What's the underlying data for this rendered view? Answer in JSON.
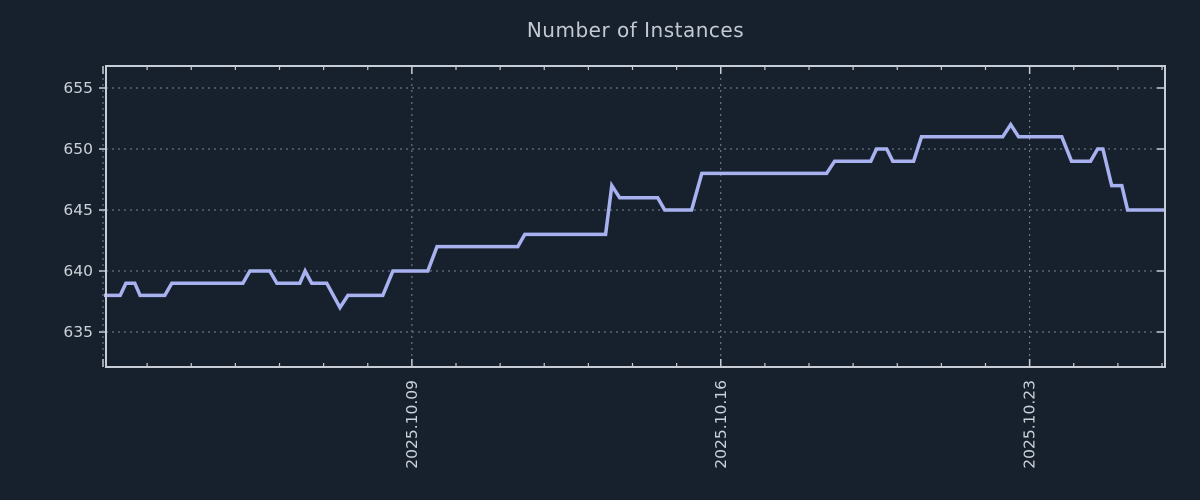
{
  "chart_data": {
    "type": "line",
    "title": "Number of Instances",
    "xlabel": "",
    "ylabel": "",
    "legend": "none",
    "grid": "dotted",
    "background_color": "#17212d",
    "line_color": "#a9b2f0",
    "axis_color": "#c7cdd6",
    "grid_color": "#7e8794",
    "text_color": "#ccd2da",
    "title_color": "#c3c9d2",
    "ylim": [
      632,
      657
    ],
    "y_ticks": [
      635,
      640,
      645,
      650,
      655
    ],
    "x_axis_unit": "days (day 0 = 2025.10.02)",
    "x_range_days": [
      0,
      24.07
    ],
    "x_major_ticks": [
      {
        "day": 0,
        "label": ""
      },
      {
        "day": 7,
        "label": "2025.10.09"
      },
      {
        "day": 14,
        "label": "2025.10.16"
      },
      {
        "day": 21,
        "label": "2025.10.23"
      }
    ],
    "x_minor_tick_every_days": 1,
    "series": [
      {
        "name": "instances",
        "points": [
          [
            0.0,
            638
          ],
          [
            0.39,
            638
          ],
          [
            0.52,
            639
          ],
          [
            0.72,
            639
          ],
          [
            0.84,
            638
          ],
          [
            1.4,
            638
          ],
          [
            1.56,
            639
          ],
          [
            3.17,
            639
          ],
          [
            3.33,
            640
          ],
          [
            3.78,
            640
          ],
          [
            3.94,
            639
          ],
          [
            4.46,
            639
          ],
          [
            4.58,
            640
          ],
          [
            4.73,
            639
          ],
          [
            5.07,
            639
          ],
          [
            5.37,
            637
          ],
          [
            5.55,
            638
          ],
          [
            6.34,
            638
          ],
          [
            6.57,
            640
          ],
          [
            7.36,
            640
          ],
          [
            7.57,
            642
          ],
          [
            9.4,
            642
          ],
          [
            9.56,
            643
          ],
          [
            11.39,
            643
          ],
          [
            11.53,
            647
          ],
          [
            11.71,
            646
          ],
          [
            12.57,
            646
          ],
          [
            12.73,
            645
          ],
          [
            13.34,
            645
          ],
          [
            13.57,
            648
          ],
          [
            16.4,
            648
          ],
          [
            16.58,
            649
          ],
          [
            17.4,
            649
          ],
          [
            17.53,
            650
          ],
          [
            17.76,
            650
          ],
          [
            17.9,
            649
          ],
          [
            18.37,
            649
          ],
          [
            18.55,
            651
          ],
          [
            20.39,
            651
          ],
          [
            20.57,
            652
          ],
          [
            20.75,
            651
          ],
          [
            21.73,
            651
          ],
          [
            21.95,
            649
          ],
          [
            22.38,
            649
          ],
          [
            22.54,
            650
          ],
          [
            22.66,
            650
          ],
          [
            22.86,
            647
          ],
          [
            23.09,
            647
          ],
          [
            23.22,
            645
          ],
          [
            24.07,
            645
          ]
        ]
      }
    ]
  }
}
